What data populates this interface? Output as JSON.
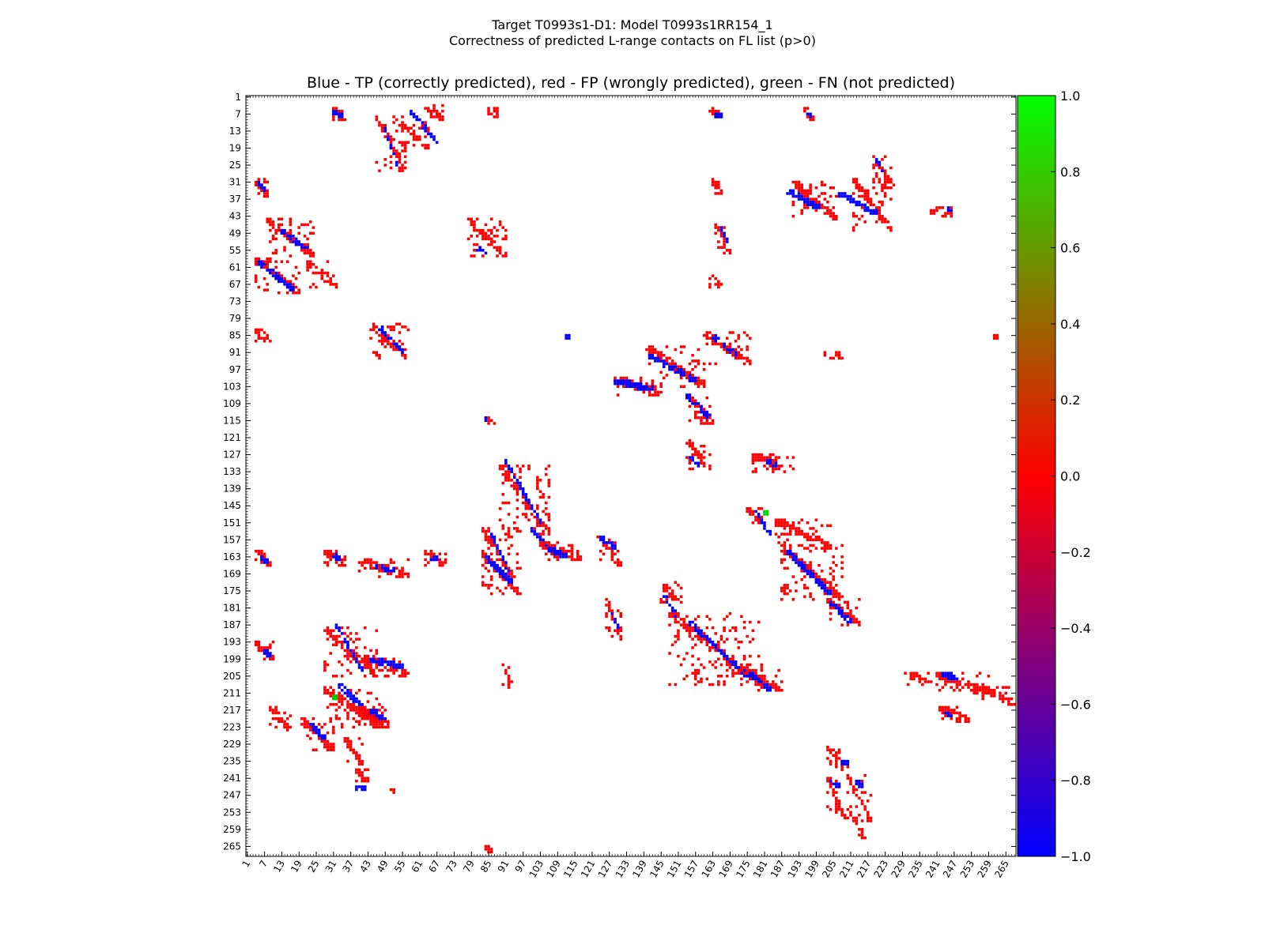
{
  "title": "Target T0993s1-D1: Model T0993s1RR154_1",
  "subtitle": "Correctness of predicted L-range contacts on FL list (p>0)",
  "axes_title": "Blue - TP (correctly predicted), red - FP (wrongly predicted), green - FN (not predicted)",
  "colors": {
    "tp": "#0000ff",
    "fp": "#ff0000",
    "fn": "#00cc00"
  },
  "chart_data": {
    "type": "heatmap",
    "title": "Blue - TP (correctly predicted), red - FP (wrongly predicted), green - FN (not predicted)",
    "xlim": [
      1,
      268
    ],
    "ylim": [
      1,
      268
    ],
    "y_inverted": true,
    "x_tick_labels": [
      "1",
      "7",
      "13",
      "19",
      "25",
      "31",
      "37",
      "43",
      "49",
      "55",
      "61",
      "67",
      "73",
      "79",
      "85",
      "91",
      "97",
      "103",
      "109",
      "115",
      "121",
      "127",
      "133",
      "139",
      "145",
      "151",
      "157",
      "163",
      "169",
      "175",
      "181",
      "187",
      "193",
      "199",
      "205",
      "211",
      "217",
      "223",
      "229",
      "235",
      "241",
      "247",
      "253",
      "259",
      "265"
    ],
    "y_tick_labels": [
      "1",
      "7",
      "13",
      "19",
      "25",
      "31",
      "37",
      "43",
      "49",
      "55",
      "61",
      "67",
      "73",
      "79",
      "85",
      "91",
      "97",
      "103",
      "109",
      "115",
      "121",
      "127",
      "133",
      "139",
      "145",
      "151",
      "157",
      "163",
      "169",
      "175",
      "181",
      "187",
      "193",
      "199",
      "205",
      "211",
      "217",
      "223",
      "229",
      "235",
      "241",
      "247",
      "253",
      "259",
      "265"
    ],
    "colorbar": {
      "range": [
        -1.0,
        1.0
      ],
      "ticks": [
        "1.0",
        "0.8",
        "0.6",
        "0.4",
        "0.2",
        "0.0",
        "−0.2",
        "−0.4",
        "−0.6",
        "−0.8",
        "−1.0"
      ],
      "stops": [
        "#00ff00",
        "#ff0000",
        "#0000ff"
      ]
    },
    "legend": {
      "TP": "correctly predicted (blue)",
      "FP": "wrongly predicted (red)",
      "FN": "not predicted (green)"
    },
    "clusters": [
      {
        "cls": "fp",
        "x": [
          31,
          35
        ],
        "y": [
          5,
          9
        ]
      },
      {
        "cls": "tp",
        "x": [
          31,
          34
        ],
        "y": [
          6,
          8
        ]
      },
      {
        "cls": "fp",
        "x": [
          63,
          69
        ],
        "y": [
          4,
          9
        ]
      },
      {
        "cls": "tp",
        "x": [
          58,
          67
        ],
        "y": [
          6,
          17
        ]
      },
      {
        "cls": "fp",
        "x": [
          55,
          64
        ],
        "y": [
          10,
          19
        ]
      },
      {
        "cls": "fp",
        "x": [
          46,
          56
        ],
        "y": [
          8,
          27
        ]
      },
      {
        "cls": "tp",
        "x": [
          49,
          53
        ],
        "y": [
          12,
          25
        ]
      },
      {
        "cls": "fp",
        "x": [
          85,
          88
        ],
        "y": [
          5,
          8
        ]
      },
      {
        "cls": "fp",
        "x": [
          162,
          166
        ],
        "y": [
          5,
          8
        ]
      },
      {
        "cls": "tp",
        "x": [
          164,
          166
        ],
        "y": [
          7,
          8
        ]
      },
      {
        "cls": "fp",
        "x": [
          194,
          198
        ],
        "y": [
          5,
          9
        ]
      },
      {
        "cls": "tp",
        "x": [
          196,
          198
        ],
        "y": [
          7,
          9
        ]
      },
      {
        "cls": "fp",
        "x": [
          219,
          226
        ],
        "y": [
          22,
          33
        ]
      },
      {
        "cls": "tp",
        "x": [
          220,
          223
        ],
        "y": [
          23,
          28
        ]
      },
      {
        "cls": "fp",
        "x": [
          191,
          206
        ],
        "y": [
          31,
          44
        ]
      },
      {
        "cls": "tp",
        "x": [
          189,
          200
        ],
        "y": [
          34,
          40
        ]
      },
      {
        "cls": "fp",
        "x": [
          212,
          225
        ],
        "y": [
          30,
          48
        ]
      },
      {
        "cls": "tp",
        "x": [
          207,
          220
        ],
        "y": [
          35,
          42
        ]
      },
      {
        "cls": "fp",
        "x": [
          239,
          246
        ],
        "y": [
          40,
          43
        ]
      },
      {
        "cls": "tp",
        "x": [
          245,
          246
        ],
        "y": [
          40,
          42
        ]
      },
      {
        "cls": "fp",
        "x": [
          4,
          8
        ],
        "y": [
          30,
          36
        ]
      },
      {
        "cls": "tp",
        "x": [
          5,
          7
        ],
        "y": [
          31,
          34
        ]
      },
      {
        "cls": "fp",
        "x": [
          163,
          166
        ],
        "y": [
          30,
          35
        ]
      },
      {
        "cls": "fp",
        "x": [
          164,
          169
        ],
        "y": [
          46,
          56
        ]
      },
      {
        "cls": "tp",
        "x": [
          166,
          168
        ],
        "y": [
          47,
          52
        ]
      },
      {
        "cls": "fp",
        "x": [
          8,
          24
        ],
        "y": [
          44,
          57
        ]
      },
      {
        "cls": "tp",
        "x": [
          13,
          22
        ],
        "y": [
          48,
          55
        ]
      },
      {
        "cls": "fp",
        "x": [
          4,
          19
        ],
        "y": [
          58,
          70
        ]
      },
      {
        "cls": "tp",
        "x": [
          5,
          17
        ],
        "y": [
          59,
          69
        ]
      },
      {
        "cls": "fp",
        "x": [
          22,
          32
        ],
        "y": [
          59,
          68
        ]
      },
      {
        "cls": "fp",
        "x": [
          78,
          91
        ],
        "y": [
          44,
          57
        ]
      },
      {
        "cls": "tp",
        "x": [
          81,
          84
        ],
        "y": [
          54,
          56
        ]
      },
      {
        "cls": "fp",
        "x": [
          162,
          166
        ],
        "y": [
          64,
          68
        ]
      },
      {
        "cls": "fp",
        "x": [
          4,
          9
        ],
        "y": [
          83,
          87
        ]
      },
      {
        "cls": "fp",
        "x": [
          44,
          57
        ],
        "y": [
          81,
          93
        ]
      },
      {
        "cls": "tp",
        "x": [
          47,
          55
        ],
        "y": [
          82,
          91
        ]
      },
      {
        "cls": "tp",
        "x": [
          112,
          113
        ],
        "y": [
          85,
          86
        ]
      },
      {
        "cls": "fp",
        "x": [
          160,
          176
        ],
        "y": [
          84,
          95
        ]
      },
      {
        "cls": "tp",
        "x": [
          163,
          171
        ],
        "y": [
          85,
          92
        ]
      },
      {
        "cls": "fp",
        "x": [
          140,
          160
        ],
        "y": [
          89,
          103
        ]
      },
      {
        "cls": "tp",
        "x": [
          141,
          157
        ],
        "y": [
          92,
          101
        ]
      },
      {
        "cls": "fp",
        "x": [
          129,
          145
        ],
        "y": [
          100,
          106
        ]
      },
      {
        "cls": "tp",
        "x": [
          129,
          142
        ],
        "y": [
          101,
          104
        ]
      },
      {
        "cls": "fp",
        "x": [
          154,
          163
        ],
        "y": [
          106,
          116
        ]
      },
      {
        "cls": "tp",
        "x": [
          154,
          162
        ],
        "y": [
          106,
          114
        ]
      },
      {
        "cls": "fp",
        "x": [
          202,
          208
        ],
        "y": [
          91,
          93
        ]
      },
      {
        "cls": "fp",
        "x": [
          261,
          262
        ],
        "y": [
          85,
          86
        ]
      },
      {
        "cls": "fp",
        "x": [
          84,
          87
        ],
        "y": [
          114,
          116
        ]
      },
      {
        "cls": "tp",
        "x": [
          84,
          85
        ],
        "y": [
          114,
          115
        ]
      },
      {
        "cls": "fp",
        "x": [
          154,
          162
        ],
        "y": [
          122,
          132
        ]
      },
      {
        "cls": "tp",
        "x": [
          155,
          158
        ],
        "y": [
          127,
          131
        ]
      },
      {
        "cls": "fp",
        "x": [
          177,
          191
        ],
        "y": [
          127,
          133
        ]
      },
      {
        "cls": "tp",
        "x": [
          182,
          185
        ],
        "y": [
          129,
          131
        ]
      },
      {
        "cls": "fp",
        "x": [
          89,
          106
        ],
        "y": [
          131,
          155
        ]
      },
      {
        "cls": "tp",
        "x": [
          91,
          103
        ],
        "y": [
          129,
          151
        ]
      },
      {
        "cls": "fp",
        "x": [
          175,
          180
        ],
        "y": [
          146,
          151
        ]
      },
      {
        "cls": "tp",
        "x": [
          178,
          183
        ],
        "y": [
          147,
          155
        ]
      },
      {
        "cls": "fn",
        "x": [
          181,
          182
        ],
        "y": [
          147,
          148
        ]
      },
      {
        "cls": "fp",
        "x": [
          185,
          204
        ],
        "y": [
          150,
          160
        ]
      },
      {
        "cls": "fp",
        "x": [
          83,
          93
        ],
        "y": [
          153,
          170
        ]
      },
      {
        "cls": "tp",
        "x": [
          86,
          92
        ],
        "y": [
          155,
          168
        ]
      },
      {
        "cls": "tp",
        "x": [
          100,
          108
        ],
        "y": [
          153,
          163
        ]
      },
      {
        "cls": "fp",
        "x": [
          103,
          117
        ],
        "y": [
          158,
          164
        ]
      },
      {
        "cls": "tp",
        "x": [
          106,
          112
        ],
        "y": [
          160,
          163
        ]
      },
      {
        "cls": "fp",
        "x": [
          123,
          131
        ],
        "y": [
          155,
          166
        ]
      },
      {
        "cls": "tp",
        "x": [
          124,
          129
        ],
        "y": [
          156,
          160
        ]
      },
      {
        "cls": "fp",
        "x": [
          4,
          9
        ],
        "y": [
          161,
          166
        ]
      },
      {
        "cls": "tp",
        "x": [
          6,
          8
        ],
        "y": [
          163,
          165
        ]
      },
      {
        "cls": "fp",
        "x": [
          28,
          35
        ],
        "y": [
          161,
          166
        ]
      },
      {
        "cls": "tp",
        "x": [
          31,
          33
        ],
        "y": [
          162,
          164
        ]
      },
      {
        "cls": "fp",
        "x": [
          40,
          57
        ],
        "y": [
          164,
          170
        ]
      },
      {
        "cls": "tp",
        "x": [
          46,
          52
        ],
        "y": [
          166,
          168
        ]
      },
      {
        "cls": "fp",
        "x": [
          63,
          70
        ],
        "y": [
          161,
          166
        ]
      },
      {
        "cls": "tp",
        "x": [
          65,
          67
        ],
        "y": [
          163,
          164
        ]
      },
      {
        "cls": "fp",
        "x": [
          83,
          96
        ],
        "y": [
          162,
          176
        ]
      },
      {
        "cls": "tp",
        "x": [
          84,
          93
        ],
        "y": [
          163,
          172
        ]
      },
      {
        "cls": "fp",
        "x": [
          187,
          208
        ],
        "y": [
          159,
          178
        ]
      },
      {
        "cls": "tp",
        "x": [
          189,
          204
        ],
        "y": [
          161,
          176
        ]
      },
      {
        "cls": "fp",
        "x": [
          203,
          214
        ],
        "y": [
          178,
          187
        ]
      },
      {
        "cls": "tp",
        "x": [
          204,
          211
        ],
        "y": [
          179,
          186
        ]
      },
      {
        "cls": "fp",
        "x": [
          145,
          152
        ],
        "y": [
          172,
          180
        ]
      },
      {
        "cls": "tp",
        "x": [
          146,
          151
        ],
        "y": [
          176,
          185
        ]
      },
      {
        "cls": "fp",
        "x": [
          148,
          180
        ],
        "y": [
          183,
          208
        ]
      },
      {
        "cls": "tp",
        "x": [
          155,
          175
        ],
        "y": [
          186,
          205
        ]
      },
      {
        "cls": "fp",
        "x": [
          173,
          187
        ],
        "y": [
          202,
          210
        ]
      },
      {
        "cls": "tp",
        "x": [
          176,
          183
        ],
        "y": [
          204,
          210
        ]
      },
      {
        "cls": "fp",
        "x": [
          126,
          131
        ],
        "y": [
          178,
          192
        ]
      },
      {
        "cls": "tp",
        "x": [
          128,
          130
        ],
        "y": [
          183,
          188
        ]
      },
      {
        "cls": "fp",
        "x": [
          4,
          10
        ],
        "y": [
          193,
          199
        ]
      },
      {
        "cls": "tp",
        "x": [
          7,
          9
        ],
        "y": [
          196,
          198
        ]
      },
      {
        "cls": "fp",
        "x": [
          28,
          46
        ],
        "y": [
          188,
          205
        ]
      },
      {
        "cls": "tp",
        "x": [
          32,
          41
        ],
        "y": [
          187,
          203
        ]
      },
      {
        "cls": "fp",
        "x": [
          42,
          57
        ],
        "y": [
          198,
          205
        ]
      },
      {
        "cls": "tp",
        "x": [
          44,
          55
        ],
        "y": [
          199,
          202
        ]
      },
      {
        "cls": "fp",
        "x": [
          90,
          93
        ],
        "y": [
          200,
          209
        ]
      },
      {
        "cls": "fp",
        "x": [
          28,
          47
        ],
        "y": [
          209,
          223
        ]
      },
      {
        "cls": "tp",
        "x": [
          33,
          44
        ],
        "y": [
          208,
          219
        ]
      },
      {
        "cls": "fn",
        "x": [
          31,
          32
        ],
        "y": [
          212,
          213
        ]
      },
      {
        "cls": "fp",
        "x": [
          40,
          50
        ],
        "y": [
          216,
          223
        ]
      },
      {
        "cls": "tp",
        "x": [
          44,
          49
        ],
        "y": [
          217,
          220
        ]
      },
      {
        "cls": "fp",
        "x": [
          9,
          16
        ],
        "y": [
          216,
          224
        ]
      },
      {
        "cls": "fp",
        "x": [
          20,
          31
        ],
        "y": [
          220,
          231
        ]
      },
      {
        "cls": "tp",
        "x": [
          23,
          28
        ],
        "y": [
          222,
          227
        ]
      },
      {
        "cls": "fp",
        "x": [
          35,
          41
        ],
        "y": [
          227,
          236
        ]
      },
      {
        "cls": "fp",
        "x": [
          39,
          43
        ],
        "y": [
          238,
          242
        ]
      },
      {
        "cls": "tp",
        "x": [
          39,
          42
        ],
        "y": [
          244,
          245
        ]
      },
      {
        "cls": "fp",
        "x": [
          51,
          52
        ],
        "y": [
          244,
          246
        ]
      },
      {
        "cls": "fp",
        "x": [
          84,
          86
        ],
        "y": [
          265,
          267
        ]
      },
      {
        "cls": "fp",
        "x": [
          230,
          239
        ],
        "y": [
          204,
          208
        ]
      },
      {
        "cls": "fp",
        "x": [
          241,
          259
        ],
        "y": [
          204,
          211
        ]
      },
      {
        "cls": "tp",
        "x": [
          243,
          248
        ],
        "y": [
          204,
          206
        ]
      },
      {
        "cls": "fp",
        "x": [
          242,
          252
        ],
        "y": [
          216,
          221
        ]
      },
      {
        "cls": "tp",
        "x": [
          244,
          246
        ],
        "y": [
          217,
          220
        ]
      },
      {
        "cls": "fp",
        "x": [
          257,
          268
        ],
        "y": [
          209,
          215
        ]
      },
      {
        "cls": "fp",
        "x": [
          203,
          210
        ],
        "y": [
          230,
          238
        ]
      },
      {
        "cls": "tp",
        "x": [
          208,
          210
        ],
        "y": [
          235,
          236
        ]
      },
      {
        "cls": "fp",
        "x": [
          203,
          209
        ],
        "y": [
          241,
          255
        ]
      },
      {
        "cls": "tp",
        "x": [
          204,
          207
        ],
        "y": [
          242,
          244
        ]
      },
      {
        "cls": "fp",
        "x": [
          210,
          218
        ],
        "y": [
          240,
          256
        ]
      },
      {
        "cls": "tp",
        "x": [
          213,
          215
        ],
        "y": [
          242,
          244
        ]
      },
      {
        "cls": "fp",
        "x": [
          213,
          216
        ],
        "y": [
          256,
          262
        ]
      }
    ]
  }
}
